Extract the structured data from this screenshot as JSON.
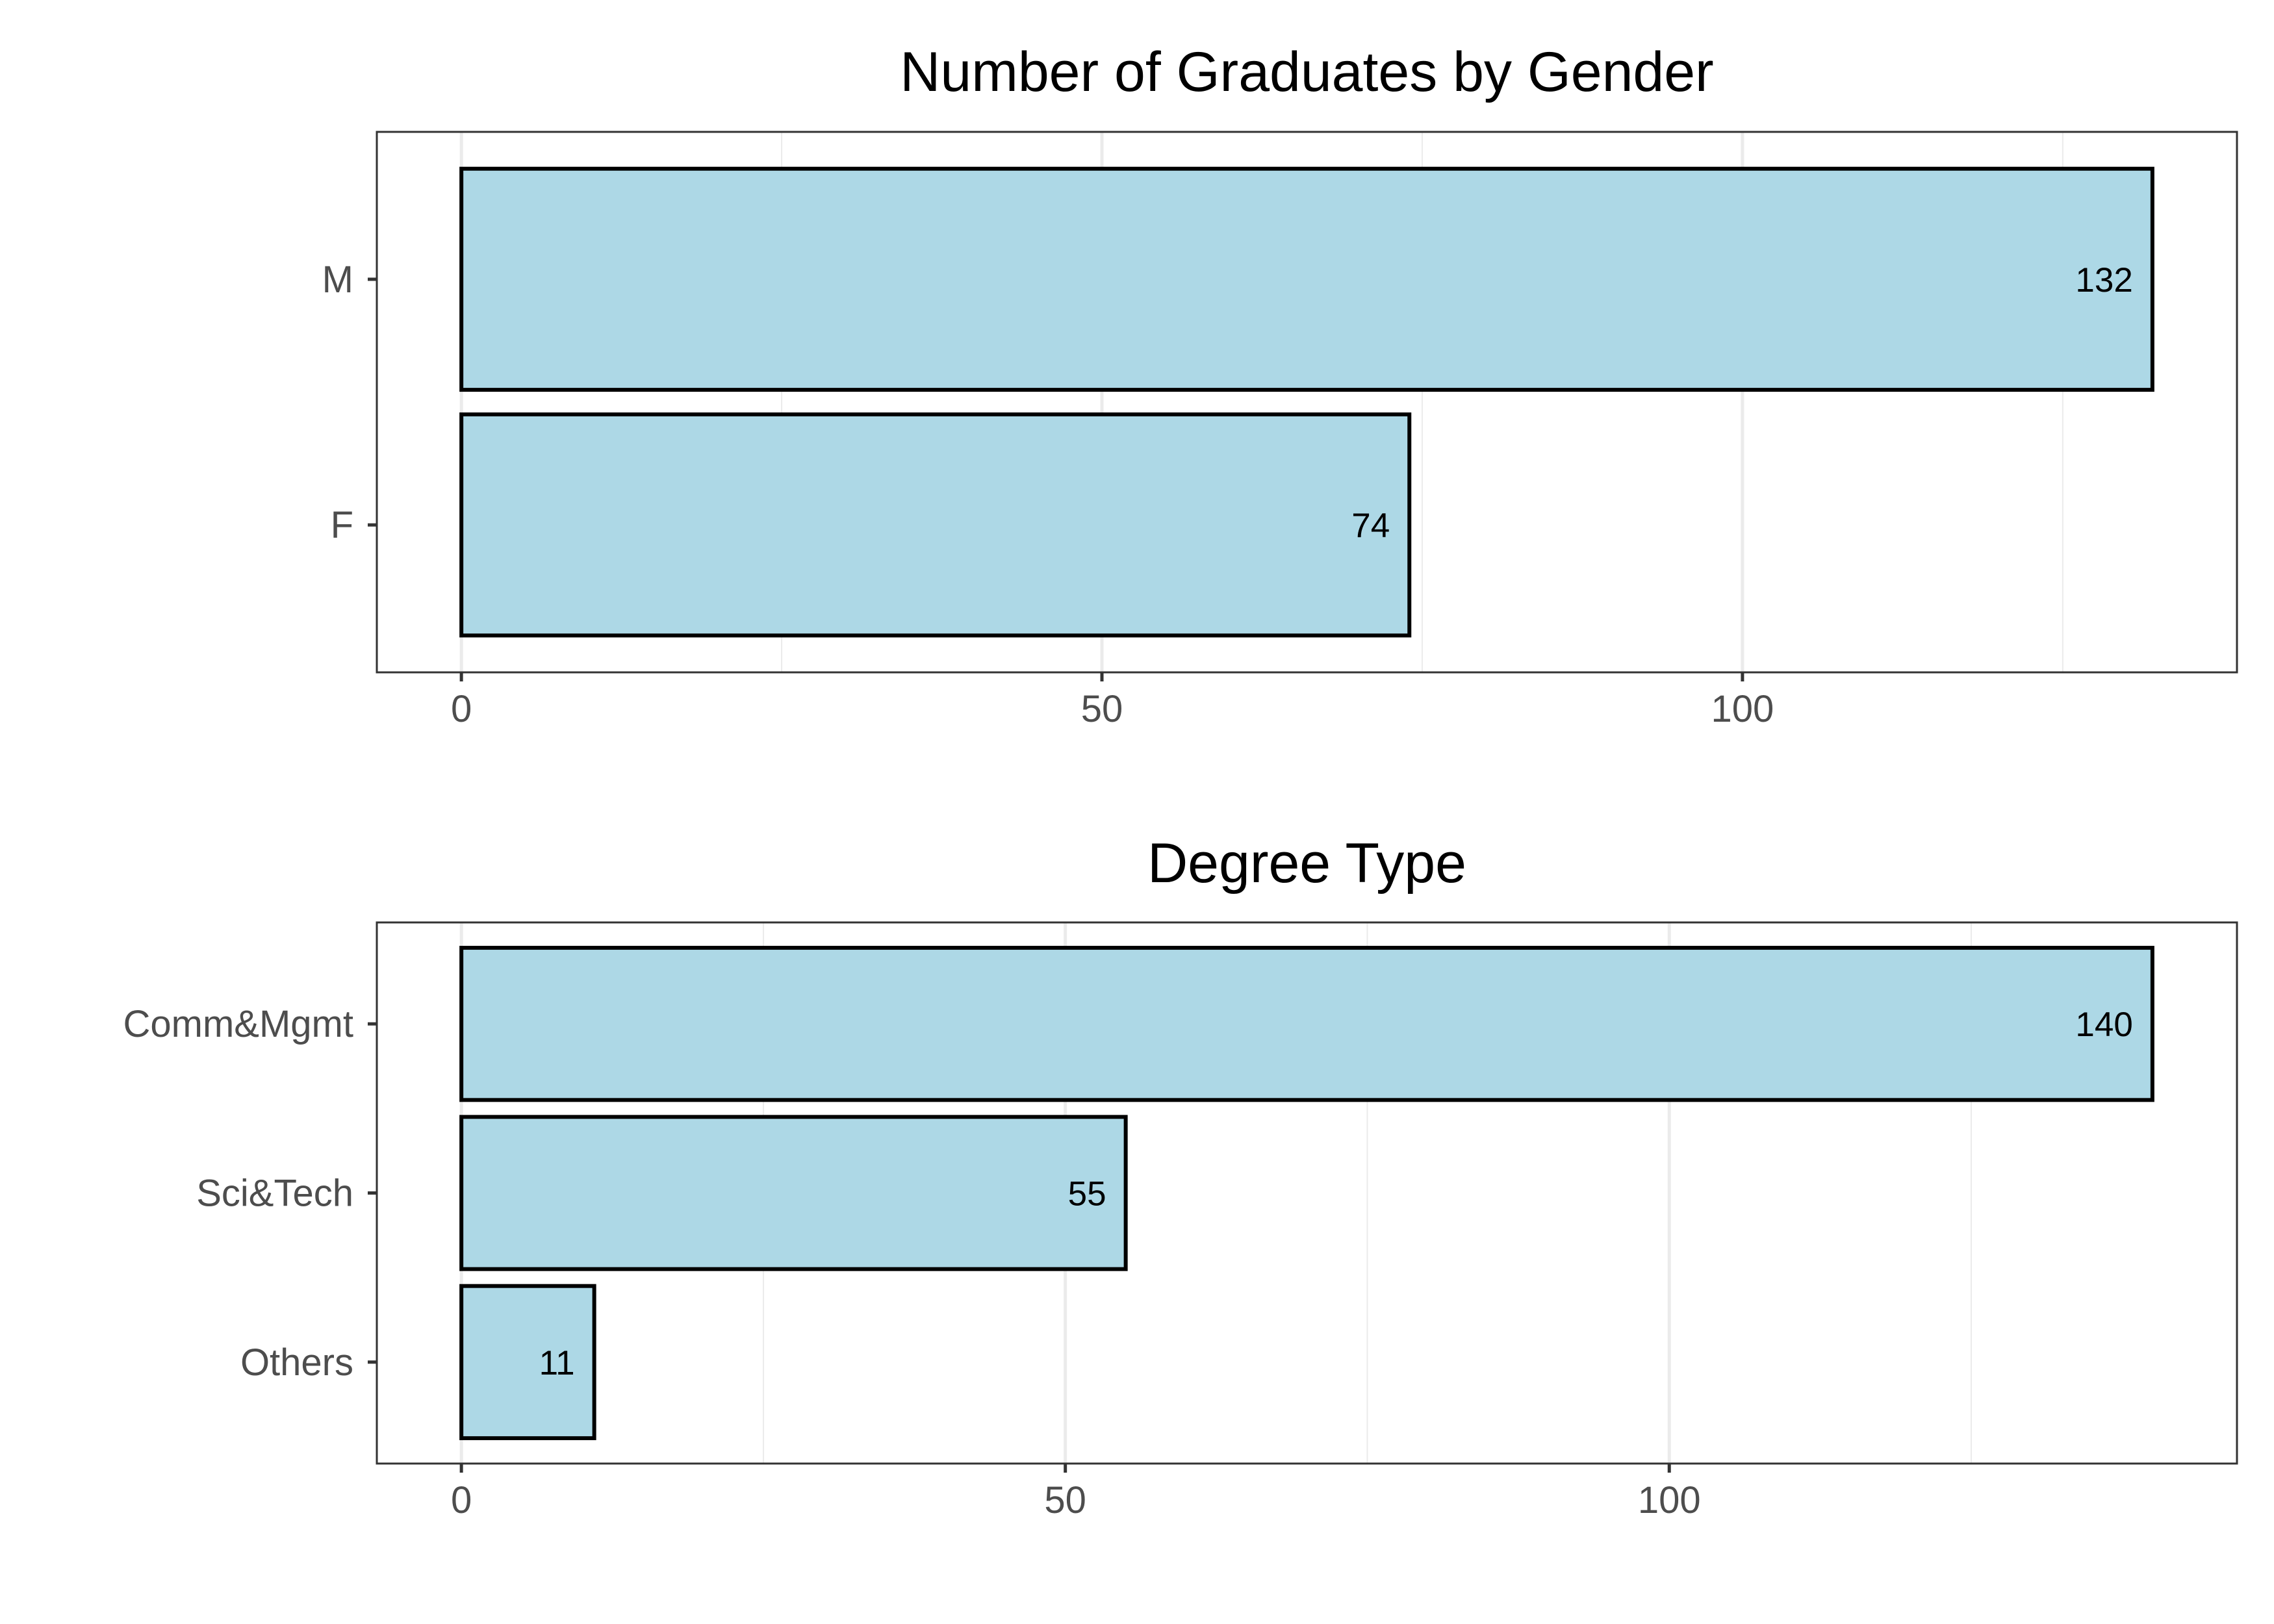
{
  "colors": {
    "bar_fill": "#add8e6",
    "bar_stroke": "#000000",
    "grid": "#ebebeb",
    "panel_border": "#333333",
    "text": "#4d4d4d"
  },
  "chart_data": [
    {
      "type": "bar",
      "orientation": "horizontal",
      "title": "Number of Graduates by Gender",
      "xlabel": "",
      "ylabel": "",
      "categories": [
        "M",
        "F"
      ],
      "values": [
        132,
        74
      ],
      "data_labels": [
        "132",
        "74"
      ],
      "xlim": [
        -6.6,
        138.6
      ],
      "ticks": [
        0,
        50,
        100
      ],
      "tick_labels": [
        "0",
        "50",
        "100"
      ],
      "grid": true,
      "legend": "none"
    },
    {
      "type": "bar",
      "orientation": "horizontal",
      "title": "Degree Type",
      "xlabel": "",
      "ylabel": "",
      "categories": [
        "Comm&Mgmt",
        "Sci&Tech",
        "Others"
      ],
      "values": [
        140,
        55,
        11
      ],
      "data_labels": [
        "140",
        "55",
        "11"
      ],
      "xlim": [
        -7,
        147
      ],
      "ticks": [
        0,
        50,
        100
      ],
      "tick_labels": [
        "0",
        "50",
        "100"
      ],
      "grid": true,
      "legend": "none"
    }
  ]
}
